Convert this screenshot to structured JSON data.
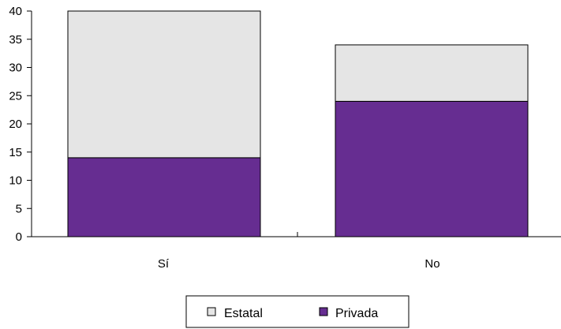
{
  "chart_data": {
    "type": "bar",
    "stacked": true,
    "categories": [
      "Sí",
      "No"
    ],
    "series": [
      {
        "name": "Privada",
        "values": [
          14,
          24
        ],
        "color": "#662d91"
      },
      {
        "name": "Estatal",
        "values": [
          26,
          10
        ],
        "color": "#e5e5e5"
      }
    ],
    "ylim": [
      0,
      40
    ],
    "yticks": [
      "0",
      "5",
      "10",
      "15",
      "20",
      "25",
      "30",
      "35",
      "40"
    ],
    "legend": {
      "position": "bottom",
      "entries": [
        "Estatal",
        "Privada"
      ]
    },
    "grid": false
  }
}
